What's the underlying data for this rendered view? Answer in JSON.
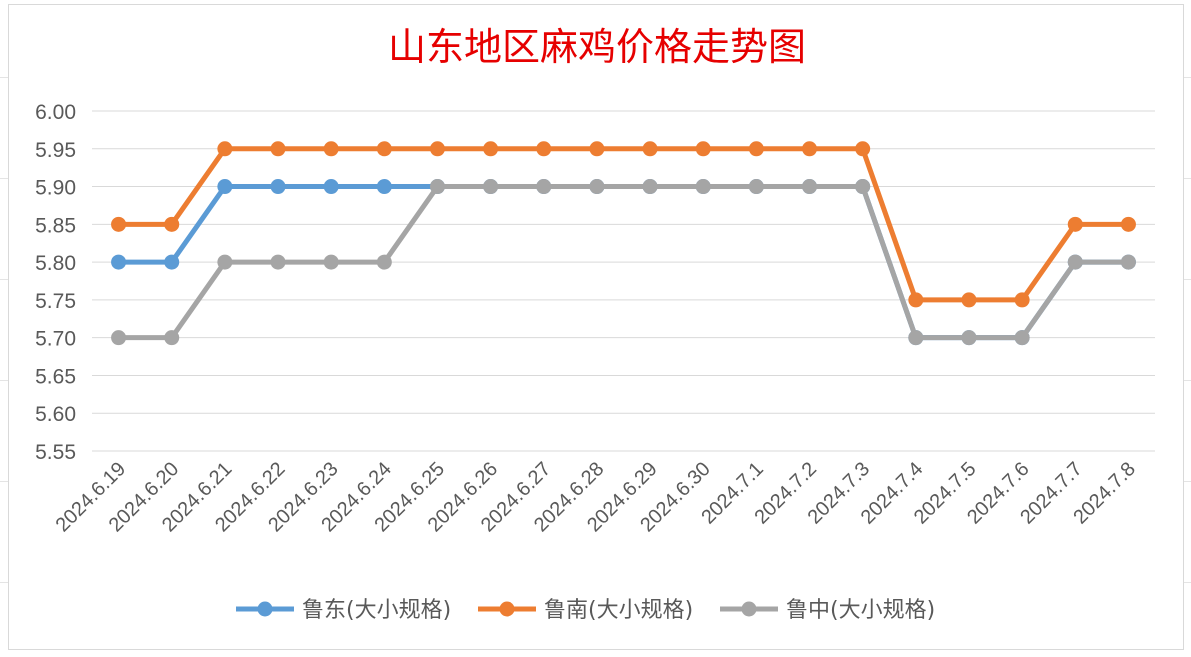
{
  "chart_data": {
    "type": "line",
    "title": "山东地区麻鸡价格走势图",
    "title_color": "#e60000",
    "categories": [
      "2024.6.19",
      "2024.6.20",
      "2024.6.21",
      "2024.6.22",
      "2024.6.23",
      "2024.6.24",
      "2024.6.25",
      "2024.6.26",
      "2024.6.27",
      "2024.6.28",
      "2024.6.29",
      "2024.6.30",
      "2024.7.1",
      "2024.7.2",
      "2024.7.3",
      "2024.7.4",
      "2024.7.5",
      "2024.7.6",
      "2024.7.7",
      "2024.7.8"
    ],
    "ylim": [
      5.55,
      6.0
    ],
    "yticks": [
      "5.55",
      "5.60",
      "5.65",
      "5.70",
      "5.75",
      "5.80",
      "5.85",
      "5.90",
      "5.95",
      "6.00"
    ],
    "grid": true,
    "legend_position": "bottom",
    "series": [
      {
        "name": "鲁东(大小规格)",
        "color": "#5b9bd5",
        "values": [
          5.8,
          5.8,
          5.9,
          5.9,
          5.9,
          5.9,
          5.9,
          5.9,
          5.9,
          5.9,
          5.9,
          5.9,
          5.9,
          5.9,
          5.9,
          5.7,
          5.7,
          5.7,
          5.8,
          5.8
        ]
      },
      {
        "name": "鲁南(大小规格)",
        "color": "#ed7d31",
        "values": [
          5.85,
          5.85,
          5.95,
          5.95,
          5.95,
          5.95,
          5.95,
          5.95,
          5.95,
          5.95,
          5.95,
          5.95,
          5.95,
          5.95,
          5.95,
          5.75,
          5.75,
          5.75,
          5.85,
          5.85
        ]
      },
      {
        "name": "鲁中(大小规格)",
        "color": "#a5a5a5",
        "values": [
          5.7,
          5.7,
          5.8,
          5.8,
          5.8,
          5.8,
          5.9,
          5.9,
          5.9,
          5.9,
          5.9,
          5.9,
          5.9,
          5.9,
          5.9,
          5.7,
          5.7,
          5.7,
          5.8,
          5.8
        ]
      }
    ]
  }
}
